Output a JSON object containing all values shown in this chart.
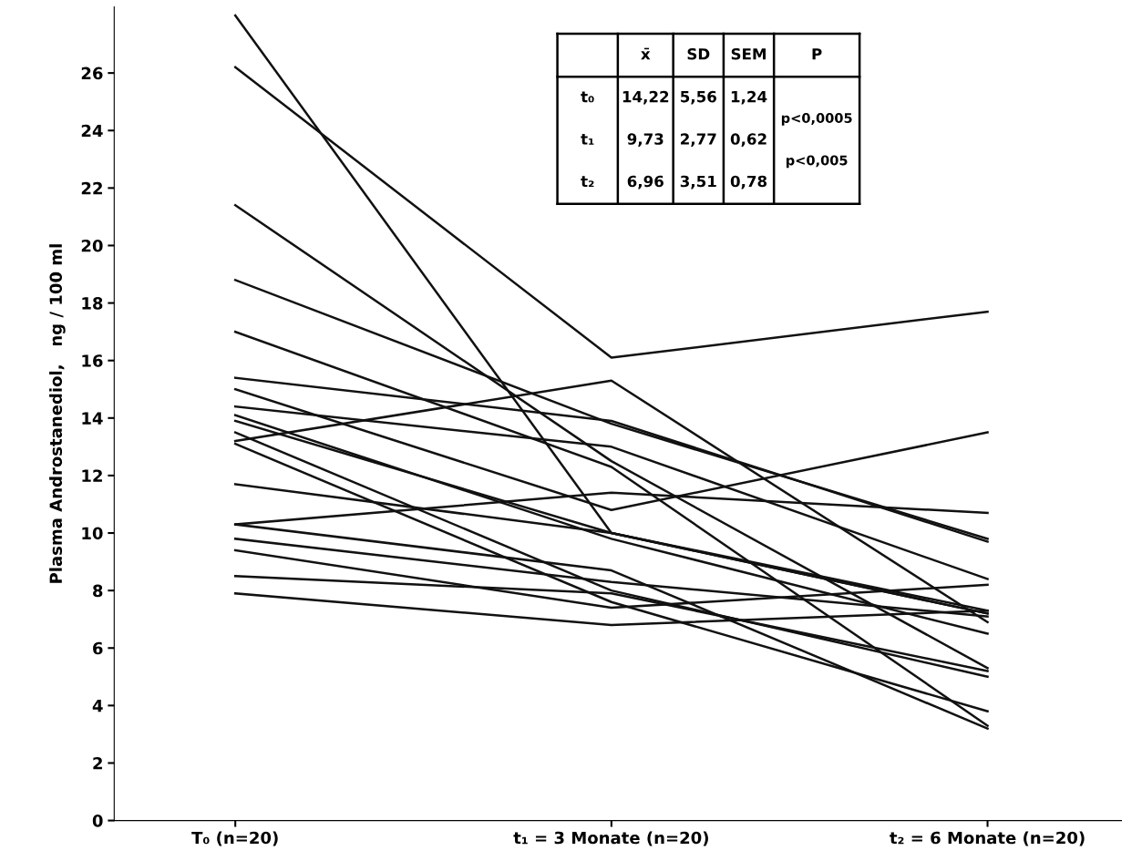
{
  "chart_data": {
    "type": "line",
    "ylabel": "Plasma Androstanediol,   ng / 100 ml",
    "categories": [
      "T₀ (n=20)",
      "t₁ = 3 Monate (n=20)",
      "t₂ = 6 Monate (n=20)"
    ],
    "series": [
      {
        "color": "#111111",
        "values": [
          28.0,
          10.0,
          7.2
        ]
      },
      {
        "color": "#111111",
        "values": [
          26.2,
          16.1,
          17.7
        ]
      },
      {
        "color": "#111111",
        "values": [
          21.4,
          12.5,
          5.3
        ]
      },
      {
        "color": "#111111",
        "values": [
          18.8,
          13.8,
          9.8
        ]
      },
      {
        "color": "#111111",
        "values": [
          17.0,
          12.3,
          3.3
        ]
      },
      {
        "color": "#111111",
        "values": [
          15.4,
          13.9,
          9.7
        ]
      },
      {
        "color": "#111111",
        "values": [
          15.0,
          10.8,
          13.5
        ]
      },
      {
        "color": "#111111",
        "values": [
          10.3,
          11.4,
          10.7
        ]
      },
      {
        "color": "#111111",
        "values": [
          14.4,
          13.0,
          8.4
        ]
      },
      {
        "color": "#111111",
        "values": [
          14.1,
          9.8,
          6.5
        ]
      },
      {
        "color": "#111111",
        "values": [
          13.9,
          10.0,
          7.3
        ]
      },
      {
        "color": "#111111",
        "values": [
          13.5,
          8.0,
          5.0
        ]
      },
      {
        "color": "#111111",
        "values": [
          13.2,
          15.3,
          6.9
        ]
      },
      {
        "color": "#111111",
        "values": [
          13.1,
          7.6,
          3.8
        ]
      },
      {
        "color": "#111111",
        "values": [
          11.7,
          10.0,
          7.2
        ]
      },
      {
        "color": "#111111",
        "values": [
          10.3,
          8.7,
          3.2
        ]
      },
      {
        "color": "#111111",
        "values": [
          9.8,
          8.3,
          7.1
        ]
      },
      {
        "color": "#111111",
        "values": [
          9.4,
          7.4,
          8.2
        ]
      },
      {
        "color": "#111111",
        "values": [
          8.5,
          7.9,
          5.2
        ]
      },
      {
        "color": "#111111",
        "values": [
          7.9,
          6.8,
          7.3
        ]
      }
    ],
    "ylim": [
      0,
      28.3
    ],
    "yticks": [
      0,
      2,
      4,
      6,
      8,
      10,
      12,
      14,
      16,
      18,
      20,
      22,
      24,
      26
    ],
    "grid": false,
    "legend": false,
    "marker": "none",
    "line_style": "solid",
    "annotations": [
      "x̄",
      "SD",
      "SEM",
      "P",
      "t₀",
      "14,22",
      "5,56",
      "1,24",
      "t₁",
      "9,73",
      "2,77",
      "0,62",
      "t₂",
      "6,96",
      "3,51",
      "0,78",
      "p<0,0005",
      "p<0,005"
    ]
  }
}
